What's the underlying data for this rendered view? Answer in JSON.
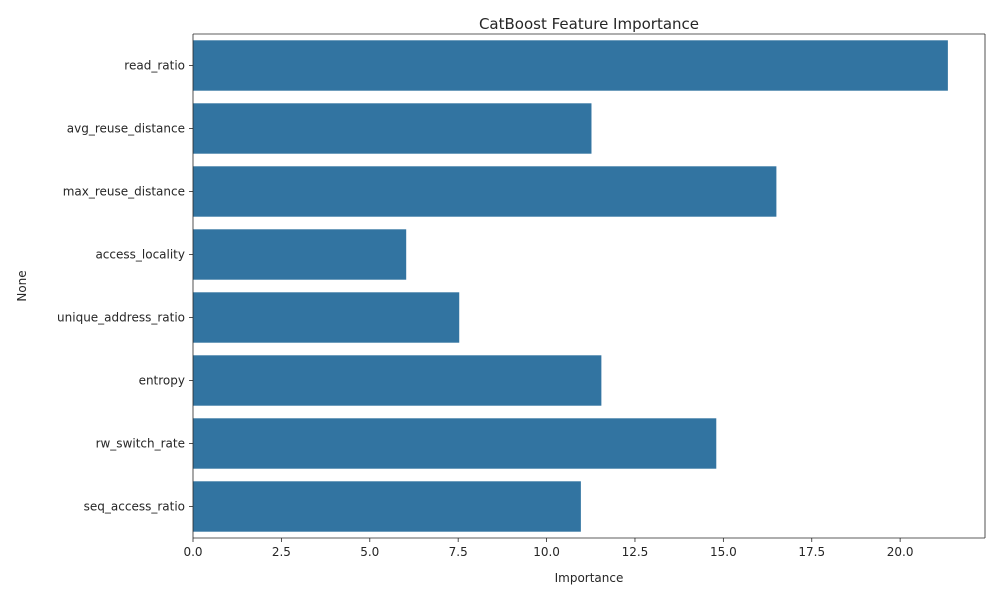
{
  "chart_data": {
    "type": "bar",
    "orientation": "horizontal",
    "title": "CatBoost Feature Importance",
    "xlabel": "Importance",
    "ylabel": "None",
    "categories": [
      "read_ratio",
      "avg_reuse_distance",
      "max_reuse_distance",
      "access_locality",
      "unique_address_ratio",
      "entropy",
      "rw_switch_rate",
      "seq_access_ratio"
    ],
    "values": [
      21.35,
      11.27,
      16.5,
      6.03,
      7.53,
      11.55,
      14.8,
      10.97
    ],
    "xlim": [
      0,
      22.4
    ],
    "xticks": [
      0.0,
      2.5,
      5.0,
      7.5,
      10.0,
      12.5,
      15.0,
      17.5,
      20.0
    ],
    "xtick_labels": [
      "0.0",
      "2.5",
      "5.0",
      "7.5",
      "10.0",
      "12.5",
      "15.0",
      "17.5",
      "20.0"
    ],
    "bar_color": "#3274a1",
    "grid": false,
    "legend": "none"
  }
}
